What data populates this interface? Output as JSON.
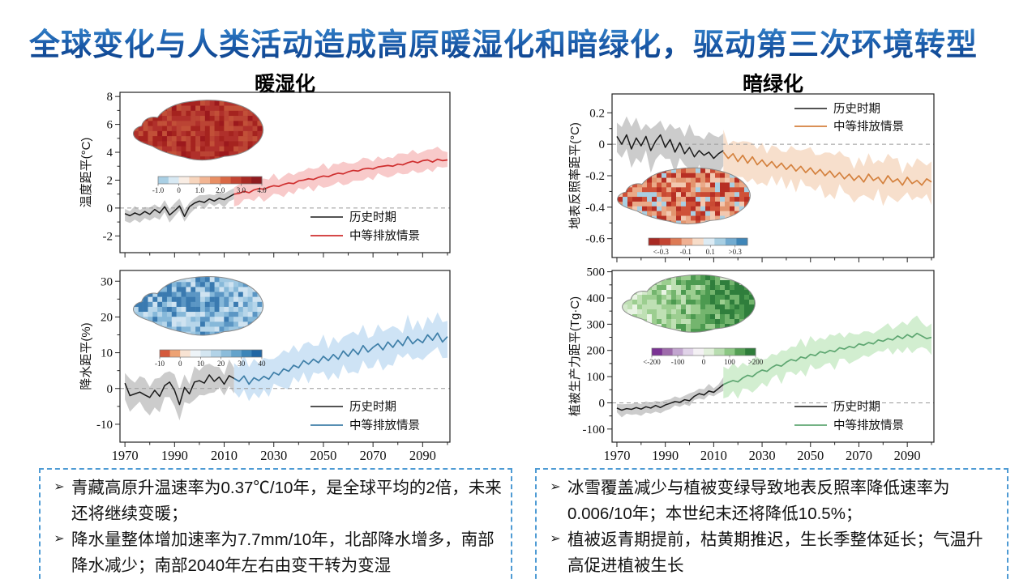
{
  "title": "全球变化与人类活动造成高原暖湿化和暗绿化，驱动第三次环境转型",
  "columns": [
    {
      "header": "暖湿化"
    },
    {
      "header": "暗绿化"
    }
  ],
  "notes": {
    "bullet": "➢",
    "boxes": [
      {
        "items": [
          "青藏高原升温速率为0.37℃/10年，是全球平均的2倍，未来还将继续变暖；",
          "降水量整体增加速率为7.7mm/10年，北部降水增多，南部降水减少；南部2040年左右由变干转为变湿"
        ]
      },
      {
        "items": [
          "冰雪覆盖减少与植被变绿导致地表反照率降低速率为0.006/10年；本世纪末还将降低10.5%；",
          "植被返青期提前，枯黄期推迟，生长季整体延长；气温升高促进植被生长"
        ]
      }
    ]
  },
  "chart_data": [
    {
      "id": "temperature-anomaly",
      "type": "line",
      "column": "暖湿化",
      "ylabel": "温度距平(°C)",
      "x_range": [
        1968,
        2101
      ],
      "x_ticks": [
        1970,
        1990,
        2010,
        2030,
        2050,
        2070,
        2090
      ],
      "y_range": [
        -3.2,
        8.3
      ],
      "y_ticks": [
        8,
        6,
        4,
        2,
        0,
        -2
      ],
      "zero_line": true,
      "legend_position": "bottom-right",
      "series": [
        {
          "name": "历史时期",
          "color": "#1a1a1a",
          "band_color": "#c7c7c7",
          "x_start": 1970,
          "x_step": 2,
          "band_halfwidth": 0.5,
          "values": [
            -0.4,
            -0.55,
            -0.35,
            -0.5,
            -0.25,
            -0.45,
            -0.1,
            -0.35,
            0.1,
            -0.5,
            -0.2,
            0.15,
            -0.6,
            0.1,
            0.35,
            0.5,
            0.4,
            0.65,
            0.5,
            0.7,
            0.6,
            0.8,
            1.0
          ]
        },
        {
          "name": "中等排放情景",
          "color": "#cf2f2f",
          "band_color": "#f7c4c4",
          "x_start": 2014,
          "x_step": 2,
          "band_halfwidth": 0.8,
          "values": [
            1.0,
            1.05,
            1.2,
            1.1,
            1.3,
            1.4,
            1.35,
            1.5,
            1.6,
            1.55,
            1.7,
            1.8,
            1.75,
            1.95,
            2.0,
            2.1,
            2.05,
            2.2,
            2.3,
            2.25,
            2.4,
            2.5,
            2.45,
            2.6,
            2.7,
            2.65,
            2.8,
            2.85,
            2.8,
            2.95,
            3.0,
            3.05,
            3.0,
            3.15,
            3.1,
            3.25,
            3.35,
            3.25,
            3.4,
            3.45,
            3.3,
            3.5,
            3.4,
            3.45
          ]
        }
      ],
      "inset": {
        "map_colors": [
          "#b0302b",
          "#a5231f",
          "#bb4434",
          "#c25038",
          "#9c191d"
        ],
        "colorbar_colors": [
          "#a9cfe4",
          "#d8e9f3",
          "#f9ede4",
          "#f7d5bd",
          "#f2b593",
          "#e88f64",
          "#d96845",
          "#c34432",
          "#a82923",
          "#8f1a1f"
        ],
        "colorbar_labels": [
          "-1.0",
          "0",
          "1.0",
          "2.0",
          "3.0",
          "4.0"
        ]
      }
    },
    {
      "id": "precipitation-anomaly",
      "type": "line",
      "column": "暖湿化",
      "ylabel": "降水距平(%)",
      "x_range": [
        1968,
        2101
      ],
      "x_ticks": [
        1970,
        1990,
        2010,
        2030,
        2050,
        2070,
        2090
      ],
      "y_range": [
        -15,
        33
      ],
      "y_ticks": [
        30,
        20,
        10,
        0,
        -10
      ],
      "zero_line": true,
      "legend_position": "bottom-right",
      "series": [
        {
          "name": "历史时期",
          "color": "#1a1a1a",
          "band_color": "#c7c7c7",
          "x_start": 1970,
          "x_step": 2,
          "band_halfwidth": 4.5,
          "values": [
            1.5,
            -2.0,
            -1.5,
            -1.0,
            -1.8,
            -2.5,
            -0.5,
            -2.2,
            0.8,
            1.8,
            -0.5,
            -4.5,
            0.3,
            -1.5,
            1.8,
            2.2,
            1.5,
            3.8,
            2.0,
            3.2,
            1.2,
            3.6,
            2.8
          ]
        },
        {
          "name": "中等排放情景",
          "color": "#3f7fa8",
          "band_color": "#c9e0f4",
          "x_start": 2014,
          "x_step": 2,
          "band_halfwidth": 5.5,
          "values": [
            2.8,
            2.0,
            3.5,
            1.2,
            3.0,
            2.2,
            3.4,
            2.6,
            4.5,
            3.8,
            5.5,
            4.8,
            6.5,
            5.8,
            7.8,
            6.8,
            8.2,
            7.2,
            9.0,
            7.8,
            9.5,
            8.2,
            10.5,
            9.0,
            11.0,
            9.5,
            12.0,
            10.2,
            11.5,
            12.5,
            10.8,
            13.0,
            11.5,
            13.5,
            12.0,
            14.5,
            12.5,
            13.8,
            12.8,
            15.0,
            13.5,
            15.5,
            13.0,
            14.5
          ]
        }
      ],
      "inset": {
        "map_colors": [
          "#9fc8e2",
          "#cfe3f1",
          "#b7d6ea",
          "#86b8d9",
          "#5b96c4",
          "#3a7ab0"
        ],
        "colorbar_colors": [
          "#d4593c",
          "#eda273",
          "#f8e3d3",
          "#eef4f8",
          "#d4e6f1",
          "#b2d3e8",
          "#8cbcda",
          "#64a3cb",
          "#3c85b8",
          "#2166a3"
        ],
        "colorbar_labels": [
          "-10",
          "0",
          "10",
          "20",
          "30",
          "40"
        ]
      }
    },
    {
      "id": "albedo-anomaly",
      "type": "line",
      "column": "暗绿化",
      "ylabel": "地表反照率距平(°C)",
      "x_range": [
        1968,
        2101
      ],
      "x_ticks": [
        1970,
        1990,
        2010,
        2030,
        2050,
        2070,
        2090
      ],
      "y_range": [
        -0.72,
        0.32
      ],
      "y_ticks": [
        0.2,
        0,
        -0.2,
        -0.4,
        -0.6
      ],
      "zero_line": true,
      "legend_position": "top-right",
      "series": [
        {
          "name": "历史时期",
          "color": "#1a1a1a",
          "band_color": "#c7c7c7",
          "x_start": 1970,
          "x_step": 2,
          "band_halfwidth": 0.13,
          "values": [
            0.05,
            0.0,
            0.06,
            -0.03,
            0.04,
            -0.01,
            0.05,
            -0.04,
            0.02,
            0.06,
            -0.02,
            0.03,
            -0.05,
            0.01,
            -0.06,
            -0.02,
            -0.08,
            -0.04,
            -0.07,
            -0.05,
            -0.09,
            -0.06,
            -0.04
          ]
        },
        {
          "name": "中等排放情景",
          "color": "#d4813e",
          "band_color": "#f6dcc6",
          "x_start": 2014,
          "x_step": 2,
          "band_halfwidth": 0.13,
          "values": [
            -0.05,
            -0.09,
            -0.06,
            -0.11,
            -0.07,
            -0.12,
            -0.08,
            -0.13,
            -0.1,
            -0.14,
            -0.11,
            -0.15,
            -0.12,
            -0.16,
            -0.13,
            -0.17,
            -0.14,
            -0.18,
            -0.15,
            -0.19,
            -0.16,
            -0.2,
            -0.17,
            -0.21,
            -0.18,
            -0.22,
            -0.19,
            -0.23,
            -0.2,
            -0.24,
            -0.19,
            -0.23,
            -0.21,
            -0.25,
            -0.2,
            -0.24,
            -0.22,
            -0.26,
            -0.21,
            -0.25,
            -0.23,
            -0.26,
            -0.22,
            -0.24
          ]
        }
      ],
      "inset": {
        "map_colors": [
          "#e2946e",
          "#b72f24",
          "#cf5138",
          "#eaa988",
          "#f2c8b0",
          "#a9cfe2",
          "#c94a33"
        ],
        "colorbar_colors": [
          "#a82923",
          "#c34432",
          "#dd7a55",
          "#efb092",
          "#f7dcc8",
          "#dcebf4",
          "#a8cfe3",
          "#72abd0",
          "#3f86b8"
        ],
        "colorbar_labels": [
          "<-0.3",
          "-0.1",
          "0.1",
          ">0.3"
        ]
      }
    },
    {
      "id": "vegetation-productivity-anomaly",
      "type": "line",
      "column": "暗绿化",
      "ylabel": "植被生产力距平(Tg·C)",
      "x_range": [
        1968,
        2101
      ],
      "x_ticks": [
        1970,
        1990,
        2010,
        2030,
        2050,
        2070,
        2090
      ],
      "y_range": [
        -150,
        505
      ],
      "y_ticks": [
        500,
        400,
        300,
        200,
        100,
        0,
        -100
      ],
      "zero_line": true,
      "legend_position": "bottom-right",
      "series": [
        {
          "name": "历史时期",
          "color": "#1a1a1a",
          "band_color": "#c7c7c7",
          "x_start": 1970,
          "x_step": 2,
          "band_halfwidth": 25,
          "values": [
            -20,
            -28,
            -22,
            -25,
            -18,
            -24,
            -15,
            -20,
            -10,
            -18,
            -8,
            -2,
            5,
            2,
            12,
            8,
            25,
            35,
            30,
            45,
            40,
            55,
            70
          ]
        },
        {
          "name": "中等排放情景",
          "color": "#5fa772",
          "band_color": "#cdeccb",
          "x_start": 2014,
          "x_step": 2,
          "band_halfwidth": 62,
          "values": [
            70,
            78,
            85,
            80,
            95,
            105,
            100,
            115,
            125,
            120,
            135,
            145,
            140,
            155,
            165,
            160,
            175,
            170,
            185,
            180,
            195,
            190,
            200,
            195,
            210,
            205,
            215,
            210,
            225,
            220,
            230,
            225,
            240,
            235,
            245,
            240,
            255,
            245,
            260,
            250,
            265,
            255,
            245,
            250
          ]
        }
      ],
      "inset": {
        "map_colors": [
          "#d4e9cc",
          "#e9f4e4",
          "#bfe0b4",
          "#9cce90",
          "#74b56e",
          "#4c9a50",
          "#2f7e3c"
        ],
        "colorbar_colors": [
          "#7b3294",
          "#9e6bab",
          "#c2a5cf",
          "#e0d3e8",
          "#f4f1f4",
          "#e2f0dc",
          "#b8ddb0",
          "#8cc784",
          "#55a055",
          "#2e7d3a"
        ],
        "colorbar_labels": [
          "<-200",
          "-100",
          "0",
          "100",
          ">200"
        ]
      }
    }
  ]
}
